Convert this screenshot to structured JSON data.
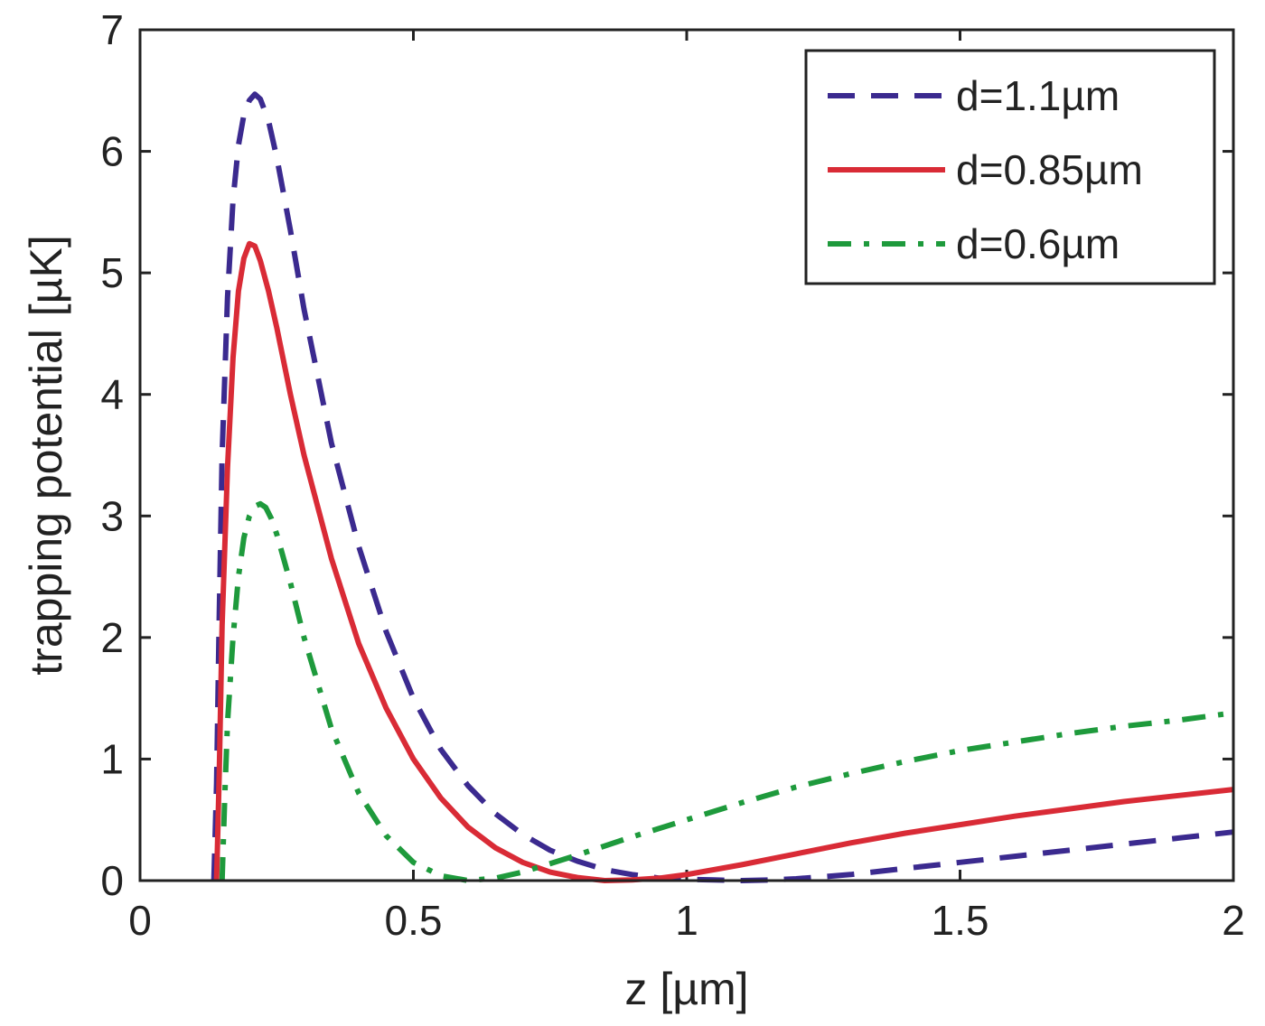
{
  "chart_data": {
    "type": "line",
    "xlabel": "z [µm]",
    "ylabel": "trapping potential [µK]",
    "xlim": [
      0,
      2
    ],
    "ylim": [
      0,
      7
    ],
    "xticks": [
      0,
      0.5,
      1,
      1.5,
      2
    ],
    "xtick_labels": [
      "0",
      "0.5",
      "1",
      "1.5",
      "2"
    ],
    "yticks": [
      0,
      1,
      2,
      3,
      4,
      5,
      6,
      7
    ],
    "ytick_labels": [
      "0",
      "1",
      "2",
      "3",
      "4",
      "5",
      "6",
      "7"
    ],
    "grid": false,
    "legend_position": "top-right",
    "series": [
      {
        "name": "d=1.1µm",
        "color": "#3b2a8f",
        "style": "dashed",
        "points": [
          [
            0.135,
            0.0
          ],
          [
            0.14,
            0.8
          ],
          [
            0.145,
            2.2
          ],
          [
            0.15,
            3.5
          ],
          [
            0.16,
            4.8
          ],
          [
            0.17,
            5.6
          ],
          [
            0.18,
            6.05
          ],
          [
            0.19,
            6.3
          ],
          [
            0.2,
            6.42
          ],
          [
            0.21,
            6.47
          ],
          [
            0.22,
            6.43
          ],
          [
            0.235,
            6.25
          ],
          [
            0.25,
            5.95
          ],
          [
            0.275,
            5.35
          ],
          [
            0.3,
            4.7
          ],
          [
            0.35,
            3.6
          ],
          [
            0.4,
            2.75
          ],
          [
            0.45,
            2.05
          ],
          [
            0.5,
            1.5
          ],
          [
            0.55,
            1.08
          ],
          [
            0.6,
            0.78
          ],
          [
            0.65,
            0.55
          ],
          [
            0.7,
            0.38
          ],
          [
            0.75,
            0.25
          ],
          [
            0.8,
            0.16
          ],
          [
            0.85,
            0.09
          ],
          [
            0.9,
            0.05
          ],
          [
            0.95,
            0.02
          ],
          [
            1.0,
            0.01
          ],
          [
            1.05,
            0.005
          ],
          [
            1.1,
            0.0
          ],
          [
            1.15,
            0.005
          ],
          [
            1.2,
            0.015
          ],
          [
            1.3,
            0.05
          ],
          [
            1.4,
            0.1
          ],
          [
            1.5,
            0.15
          ],
          [
            1.6,
            0.2
          ],
          [
            1.7,
            0.25
          ],
          [
            1.8,
            0.3
          ],
          [
            1.9,
            0.35
          ],
          [
            2.0,
            0.4
          ]
        ]
      },
      {
        "name": "d=0.85µm",
        "color": "#d92b36",
        "style": "solid",
        "points": [
          [
            0.14,
            0.0
          ],
          [
            0.145,
            0.9
          ],
          [
            0.15,
            2.1
          ],
          [
            0.16,
            3.4
          ],
          [
            0.17,
            4.3
          ],
          [
            0.18,
            4.85
          ],
          [
            0.19,
            5.12
          ],
          [
            0.2,
            5.24
          ],
          [
            0.21,
            5.22
          ],
          [
            0.22,
            5.1
          ],
          [
            0.235,
            4.85
          ],
          [
            0.25,
            4.55
          ],
          [
            0.275,
            4.0
          ],
          [
            0.3,
            3.5
          ],
          [
            0.35,
            2.65
          ],
          [
            0.4,
            1.95
          ],
          [
            0.45,
            1.42
          ],
          [
            0.5,
            1.0
          ],
          [
            0.55,
            0.68
          ],
          [
            0.6,
            0.44
          ],
          [
            0.65,
            0.27
          ],
          [
            0.7,
            0.15
          ],
          [
            0.75,
            0.07
          ],
          [
            0.8,
            0.025
          ],
          [
            0.85,
            0.0
          ],
          [
            0.9,
            0.005
          ],
          [
            0.95,
            0.02
          ],
          [
            1.0,
            0.05
          ],
          [
            1.1,
            0.13
          ],
          [
            1.2,
            0.22
          ],
          [
            1.3,
            0.31
          ],
          [
            1.4,
            0.39
          ],
          [
            1.5,
            0.46
          ],
          [
            1.6,
            0.53
          ],
          [
            1.7,
            0.59
          ],
          [
            1.8,
            0.65
          ],
          [
            1.9,
            0.7
          ],
          [
            2.0,
            0.75
          ]
        ]
      },
      {
        "name": "d=0.6µm",
        "color": "#1e9a3c",
        "style": "dashdot",
        "points": [
          [
            0.15,
            0.0
          ],
          [
            0.155,
            0.7
          ],
          [
            0.16,
            1.3
          ],
          [
            0.17,
            2.0
          ],
          [
            0.18,
            2.5
          ],
          [
            0.19,
            2.82
          ],
          [
            0.2,
            3.0
          ],
          [
            0.21,
            3.08
          ],
          [
            0.22,
            3.1
          ],
          [
            0.23,
            3.07
          ],
          [
            0.24,
            2.98
          ],
          [
            0.25,
            2.85
          ],
          [
            0.275,
            2.45
          ],
          [
            0.3,
            2.0
          ],
          [
            0.35,
            1.25
          ],
          [
            0.4,
            0.72
          ],
          [
            0.45,
            0.37
          ],
          [
            0.5,
            0.15
          ],
          [
            0.55,
            0.04
          ],
          [
            0.6,
            0.0
          ],
          [
            0.65,
            0.02
          ],
          [
            0.7,
            0.07
          ],
          [
            0.75,
            0.14
          ],
          [
            0.8,
            0.21
          ],
          [
            0.9,
            0.36
          ],
          [
            1.0,
            0.5
          ],
          [
            1.1,
            0.64
          ],
          [
            1.2,
            0.77
          ],
          [
            1.3,
            0.88
          ],
          [
            1.4,
            0.98
          ],
          [
            1.5,
            1.07
          ],
          [
            1.6,
            1.14
          ],
          [
            1.7,
            1.21
          ],
          [
            1.8,
            1.27
          ],
          [
            1.9,
            1.32
          ],
          [
            2.0,
            1.38
          ]
        ]
      }
    ]
  }
}
